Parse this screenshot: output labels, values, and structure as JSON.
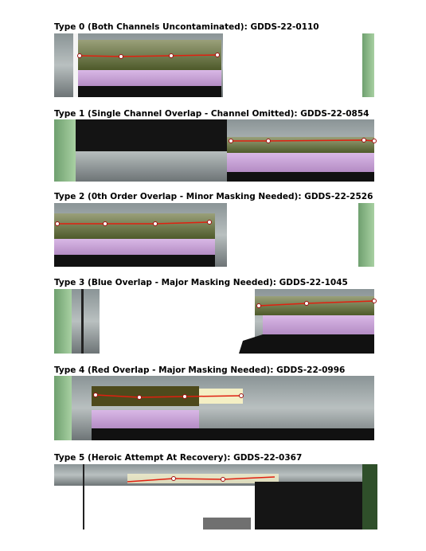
{
  "panels": [
    {
      "title": "Type 0 (Both Channels Uncontaminated): GDDS-22-0110"
    },
    {
      "title": "Type 1 (Single Channel Overlap - Channel Omitted): GDDS-22-0854"
    },
    {
      "title": "Type 2 (0th Order Overlap - Minor Masking Needed): GDDS-22-2526"
    },
    {
      "title": "Type 3 (Blue Overlap - Major Masking Needed): GDDS-22-1045"
    },
    {
      "title": "Type 4 (Red Overlap - Major Masking Needed): GDDS-22-0996"
    },
    {
      "title": "Type 5 (Heroic Attempt At Recovery): GDDS-22-0367"
    }
  ]
}
